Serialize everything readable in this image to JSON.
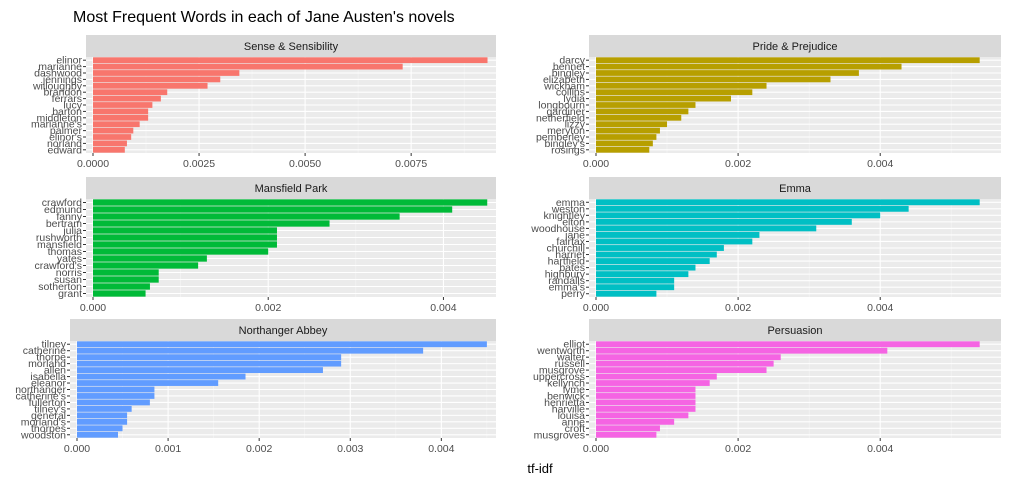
{
  "chart_data": {
    "type": "bar",
    "orientation": "horizontal",
    "title": "Most Frequent Words in each of Jane Austen's novels",
    "xlabel": "tf-idf",
    "ylabel": "",
    "legend": "none",
    "grid": true,
    "facets": [
      {
        "name": "Sense & Sensibility",
        "color": "#F8766D",
        "xlim": [
          0,
          0.0095
        ],
        "ticks": [
          0,
          0.0025,
          0.005,
          0.0075
        ],
        "tick_labels": [
          "0.0000",
          "0.0025",
          "0.0050",
          "0.0075"
        ],
        "categories": [
          "elinor",
          "marianne",
          "dashwood",
          "jennings",
          "willoughby",
          "brandon",
          "ferrars",
          "lucy",
          "barton",
          "middleton",
          "marianne's",
          "palmer",
          "elinor's",
          "norland",
          "edward"
        ],
        "values": [
          0.0093,
          0.0073,
          0.00345,
          0.003,
          0.0027,
          0.00175,
          0.0016,
          0.0014,
          0.0013,
          0.0013,
          0.0011,
          0.00095,
          0.0009,
          0.0008,
          0.00075
        ]
      },
      {
        "name": "Pride & Prejudice",
        "color": "#B79F00",
        "xlim": [
          0,
          0.0057
        ],
        "ticks": [
          0,
          0.002,
          0.004
        ],
        "tick_labels": [
          "0.000",
          "0.002",
          "0.004"
        ],
        "categories": [
          "darcy",
          "bennet",
          "bingley",
          "elizabeth",
          "wickham",
          "collins",
          "lydia",
          "longbourn",
          "gardiner",
          "netherfield",
          "lizzy",
          "meryton",
          "pemberley",
          "bingley's",
          "rosings"
        ],
        "values": [
          0.0054,
          0.0043,
          0.0037,
          0.0033,
          0.0024,
          0.0022,
          0.0019,
          0.0014,
          0.0013,
          0.0012,
          0.001,
          0.0009,
          0.00085,
          0.0008,
          0.00075
        ]
      },
      {
        "name": "Mansfield Park",
        "color": "#00BA38",
        "xlim": [
          0,
          0.0046
        ],
        "ticks": [
          0,
          0.002,
          0.004
        ],
        "tick_labels": [
          "0.000",
          "0.002",
          "0.004"
        ],
        "categories": [
          "crawford",
          "edmund",
          "fanny",
          "bertram",
          "julia",
          "rushworth",
          "mansfield",
          "thomas",
          "yates",
          "crawford's",
          "norris",
          "susan",
          "sotherton",
          "grant"
        ],
        "values": [
          0.0045,
          0.0041,
          0.0035,
          0.0027,
          0.0021,
          0.0021,
          0.0021,
          0.002,
          0.0013,
          0.0012,
          0.00075,
          0.00075,
          0.00065,
          0.0006
        ]
      },
      {
        "name": "Emma",
        "color": "#00BFC4",
        "xlim": [
          0,
          0.0057
        ],
        "ticks": [
          0,
          0.002,
          0.004
        ],
        "tick_labels": [
          "0.000",
          "0.002",
          "0.004"
        ],
        "categories": [
          "emma",
          "weston",
          "knightley",
          "elton",
          "woodhouse",
          "jane",
          "fairfax",
          "churchill",
          "harriet",
          "hartfield",
          "bates",
          "highbury",
          "randalls",
          "emma's",
          "perry"
        ],
        "values": [
          0.0054,
          0.0044,
          0.004,
          0.0036,
          0.0031,
          0.0023,
          0.0022,
          0.0018,
          0.0017,
          0.0016,
          0.0014,
          0.0013,
          0.0011,
          0.0011,
          0.00085
        ]
      },
      {
        "name": "Northanger Abbey",
        "color": "#619CFF",
        "xlim": [
          0,
          0.0046
        ],
        "ticks": [
          0,
          0.001,
          0.002,
          0.003,
          0.004
        ],
        "tick_labels": [
          "0.000",
          "0.001",
          "0.002",
          "0.003",
          "0.004"
        ],
        "categories": [
          "tilney",
          "catherine",
          "thorpe",
          "morland",
          "allen",
          "isabella",
          "eleanor",
          "northanger",
          "catherine's",
          "fullerton",
          "tilney's",
          "general",
          "morland's",
          "thorpes",
          "woodston"
        ],
        "values": [
          0.0045,
          0.0038,
          0.0029,
          0.0029,
          0.0027,
          0.00185,
          0.00155,
          0.00085,
          0.00085,
          0.0008,
          0.0006,
          0.00055,
          0.00055,
          0.0005,
          0.00045
        ]
      },
      {
        "name": "Persuasion",
        "color": "#F564E3",
        "xlim": [
          0,
          0.0057
        ],
        "ticks": [
          0,
          0.002,
          0.004
        ],
        "tick_labels": [
          "0.000",
          "0.002",
          "0.004"
        ],
        "categories": [
          "elliot",
          "wentworth",
          "walter",
          "russell",
          "musgrove",
          "uppercross",
          "kellynch",
          "lyme",
          "benwick",
          "henrietta",
          "harville",
          "louisa",
          "anne",
          "croft",
          "musgroves"
        ],
        "values": [
          0.0054,
          0.0041,
          0.0026,
          0.0025,
          0.0024,
          0.0017,
          0.0016,
          0.0014,
          0.0014,
          0.0014,
          0.0014,
          0.0013,
          0.0011,
          0.0009,
          0.00085
        ]
      }
    ]
  }
}
